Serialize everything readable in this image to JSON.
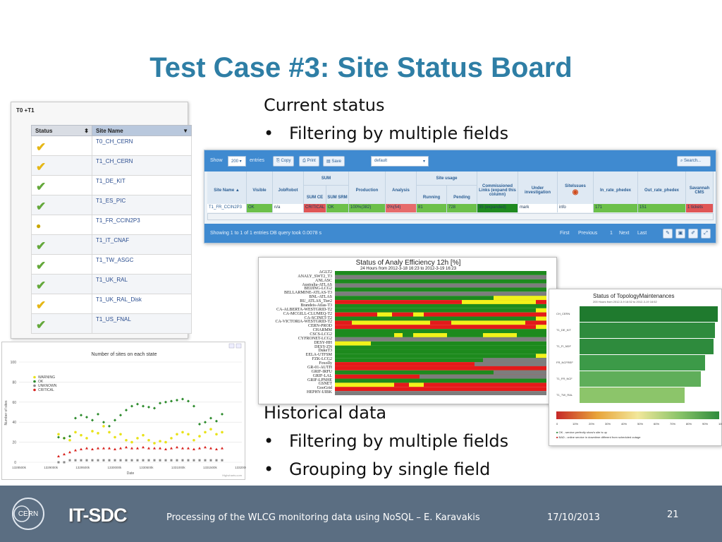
{
  "slide": {
    "title": "Test Case #3: Site Status Board",
    "current": {
      "heading": "Current status",
      "bullets": [
        "Filtering by multiple fields"
      ]
    },
    "historical": {
      "heading": "Historical data",
      "bullets": [
        "Filtering by multiple fields",
        "Grouping by single field"
      ]
    },
    "bullet_char": "•",
    "footer": {
      "logo_text": "CERN",
      "brand": "IT-SDC",
      "caption": "Processing of the WLCG monitoring data using NoSQL – E. Karavakis",
      "date": "17/10/2013",
      "page": "21"
    }
  },
  "status_panel": {
    "title": "T0 +T1",
    "col_status": "Status",
    "col_site": "Site Name",
    "sort_icon": "⬍",
    "sorted_icon": "▼",
    "rows": [
      {
        "site": "T0_CH_CERN",
        "status": "warn",
        "glyph": "✔"
      },
      {
        "site": "T1_CH_CERN",
        "status": "warn",
        "glyph": "✔"
      },
      {
        "site": "T1_DE_KIT",
        "status": "ok",
        "glyph": "✔"
      },
      {
        "site": "T1_ES_PIC",
        "status": "ok",
        "glyph": "✔"
      },
      {
        "site": "T1_FR_CCIN2P3",
        "status": "part",
        "glyph": "●"
      },
      {
        "site": "T1_IT_CNAF",
        "status": "ok",
        "glyph": "✔"
      },
      {
        "site": "T1_TW_ASGC",
        "status": "ok",
        "glyph": "✔"
      },
      {
        "site": "T1_UK_RAL",
        "status": "ok",
        "glyph": "✔"
      },
      {
        "site": "T1_UK_RAL_Disk",
        "status": "warn",
        "glyph": "✔"
      },
      {
        "site": "T1_US_FNAL",
        "status": "ok",
        "glyph": "✔"
      }
    ]
  },
  "datatable": {
    "show_label": "Show",
    "entries_value": "200",
    "entries_label": "entries",
    "buttons": [
      "Copy",
      "Print",
      "Save"
    ],
    "view_value": "default",
    "search_label": "Search...",
    "group_sum": "SUM",
    "group_site_usage": "Site usage",
    "headers": {
      "site_name": "Site Name",
      "visible": "Visible",
      "jobrobot": "JobRobot",
      "sum_ce": "SUM CE",
      "sum_srm": "SUM SRM",
      "production": "Production",
      "analysis": "Analysis",
      "running": "Running",
      "pending": "Pending",
      "commissioned": "Commissioned Links (expand this column)",
      "under_investigation": "Under investigation",
      "site_issues": "SiteIssues",
      "in_rate": "In_rate_phedex",
      "out_rate": "Out_rate_phedex",
      "savannah": "Savannah CMS"
    },
    "row": {
      "site_name": "T1_FR_CCIN2P3",
      "visible": "OK",
      "jobrobot": "n/a",
      "sum_ce": "CRITICAL",
      "sum_srm": "OK",
      "production": "100%(382)",
      "analysis": "0%(54)",
      "running": "81",
      "pending": "728",
      "commissioned": "35 (expanded)",
      "under_investigation": "mark",
      "site_issues": "info",
      "in_rate": "171",
      "out_rate": "151",
      "savannah": "1 tickets"
    },
    "footer_info": "Showing 1 to 1 of 1 entries   DB query took 0.0078 s",
    "pager": [
      "First",
      "Previous",
      "1",
      "Next",
      "Last"
    ]
  },
  "heatmap": {
    "title": "Status of Analy Efficiency 12h [%]",
    "subtitle": "24 Hours from 2012-3-18 16:23 to 2012-3-19 16:23",
    "sites": [
      "AGLT2",
      "ANALY_SWT2_T3",
      "ANLASC",
      "Australia-ATLAS",
      "BEIJING-LCG2",
      "BELLARMINE-ATLAS-T3",
      "BNL-ATLAS",
      "BU_ATLAS_Tier2",
      "Brandeis-Atlas-T3",
      "CA-ALBERTA-WESTGRID-T2",
      "CA-MCGILL-CLUMEQ-T2",
      "CA-SCINET-T2",
      "CA-VICTORIA-WESTGRID-T2",
      "CERN-PROD",
      "CHARMM",
      "CSCS-LCG2",
      "CYFRONET-LCG2",
      "DESY-HH",
      "DESY-ZN",
      "DukeT3",
      "EELA-UTFSM",
      "FZK-LCG2",
      "Foxolly",
      "GR-01-AUTH",
      "GRIF-IRFU",
      "GRIF-LAL",
      "GRIF-LPNHE",
      "GSNET",
      "GooGrid",
      "HEPHY-UIBK"
    ]
  },
  "topology": {
    "title": "Status of TopologyMaintenances",
    "subtitle": "200 Hours from 2012-3-9 16:52 to 2012-3-19 16:52",
    "sites": [
      "CH_CERN",
      "T1_DE_KIT",
      "T1_FI_NDF",
      "FR_NCFREF",
      "T1_FR_NCF",
      "T1_TW_RAL"
    ],
    "values": [
      100,
      98,
      97,
      91,
      88,
      76
    ],
    "legend_ticks": [
      "0",
      "10%",
      "20%",
      "30%",
      "40%",
      "50%",
      "60%",
      "70%",
      "80%",
      "90%",
      "100%"
    ],
    "legend_notes": [
      "OK - service perfectly show's site is up",
      "BAD - online service in downtime different from scheduled outage"
    ]
  },
  "chart_data": {
    "type": "scatter",
    "title": "Number of sites on each state",
    "xlabel": "Date",
    "ylabel": "Number of sites",
    "ylim": [
      0,
      100
    ],
    "yticks": [
      "0",
      "20",
      "40",
      "60",
      "80",
      "100"
    ],
    "xticks": [
      "1328500k",
      "1329000k",
      "1329500k",
      "1330000k",
      "1330500k",
      "1331000k",
      "1331500k",
      "1332000k"
    ],
    "legend_position": "top-left",
    "grid": true,
    "series": [
      {
        "name": "WARNING",
        "color": "#e8e21a",
        "values": [
          28,
          24,
          22,
          30,
          27,
          24,
          31,
          29,
          36,
          30,
          25,
          28,
          22,
          20,
          24,
          27,
          22,
          19,
          21,
          20,
          24,
          28,
          30,
          28,
          22,
          26,
          30,
          33,
          28,
          30
        ]
      },
      {
        "name": "OK",
        "color": "#2a8a2a",
        "values": [
          25,
          24,
          26,
          44,
          47,
          45,
          42,
          48,
          40,
          36,
          42,
          47,
          52,
          56,
          58,
          56,
          55,
          54,
          59,
          60,
          61,
          62,
          63,
          61,
          56,
          38,
          40,
          44,
          41,
          48
        ]
      },
      {
        "name": "UNKNOWN",
        "color": "#888888",
        "values": [
          0,
          0,
          2,
          2,
          2,
          2,
          2,
          2,
          2,
          2,
          2,
          2,
          2,
          2,
          2,
          2,
          2,
          2,
          2,
          2,
          2,
          2,
          2,
          2,
          2,
          2,
          2,
          2,
          2,
          2
        ]
      },
      {
        "name": "CRITICAL",
        "color": "#d8231f",
        "values": [
          6,
          8,
          10,
          12,
          13,
          14,
          13,
          14,
          14,
          14,
          13,
          14,
          15,
          14,
          14,
          15,
          14,
          14,
          14,
          13,
          14,
          15,
          14,
          14,
          13,
          14,
          15,
          14,
          13,
          14
        ]
      }
    ],
    "footnote": "Highcharts.com"
  }
}
